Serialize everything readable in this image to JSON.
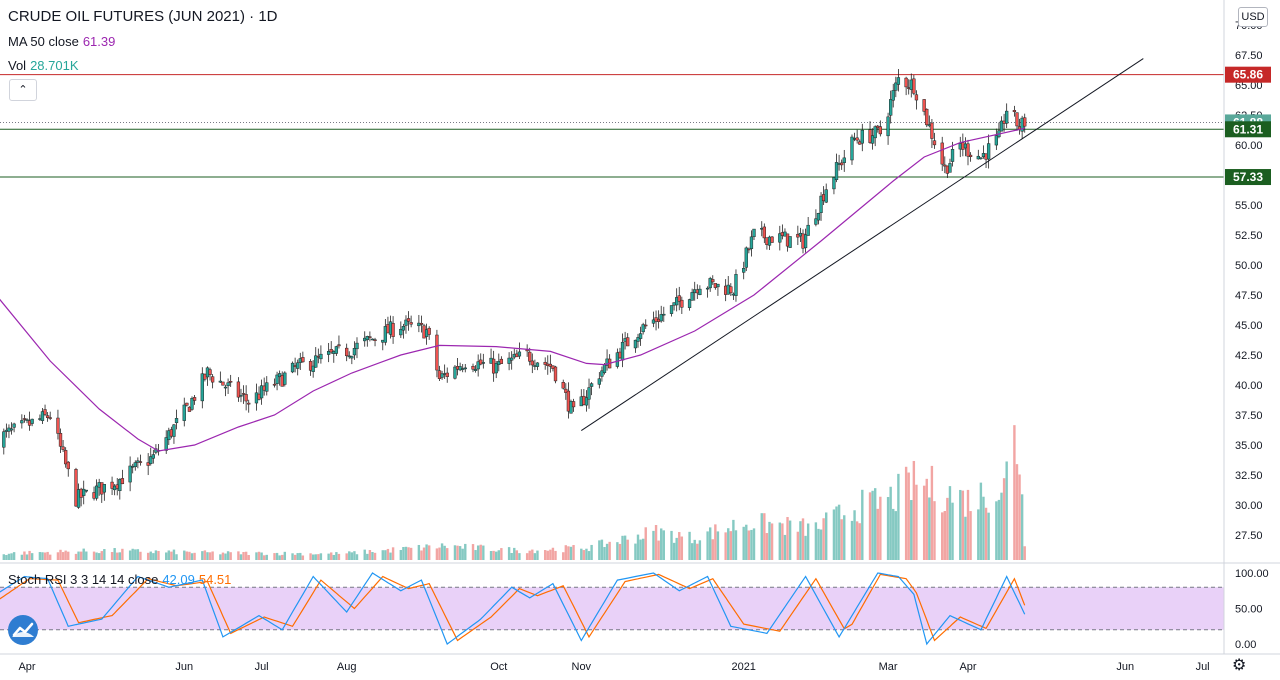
{
  "header": {
    "title": "CRUDE OIL FUTURES (JUN 2021) · 1D",
    "ma_label": "MA 50 close",
    "ma_value": "61.39",
    "vol_label": "Vol",
    "vol_value": "28.701K",
    "stoch_label": "Stoch RSI 3 3 14 14 close",
    "stoch_k": "42.09",
    "stoch_d": "54.51"
  },
  "controls": {
    "currency": "USD",
    "collapse": "⌃",
    "settings": "⚙"
  },
  "colors": {
    "up": "#26a69a",
    "down": "#ef5350",
    "ma": "#9c27b0",
    "vol_up": "#85c9c2",
    "vol_down": "#f2a5a3",
    "stoch_k": "#2196f3",
    "stoch_d": "#ff6d00",
    "stoch_band": "#e5c9f7",
    "resistance": "#c62828",
    "support": "#1b5e20",
    "trend": "#131722"
  },
  "chart_data": {
    "type": "candlestick",
    "title": "CRUDE OIL FUTURES (JUN 2021) · 1D",
    "y_ticks": [
      "27.50",
      "30.00",
      "32.50",
      "35.00",
      "37.50",
      "40.00",
      "42.50",
      "45.00",
      "47.50",
      "50.00",
      "52.50",
      "55.00",
      "57.50",
      "60.00",
      "62.50",
      "65.00",
      "67.50",
      "70.00"
    ],
    "ylim": [
      25.9,
      72.7
    ],
    "x_ticks": [
      {
        "label": "Apr",
        "date": "2020-04-01"
      },
      {
        "label": "Jun",
        "date": "2020-06-01"
      },
      {
        "label": "Jul",
        "date": "2020-07-01"
      },
      {
        "label": "Aug",
        "date": "2020-08-03"
      },
      {
        "label": "Oct",
        "date": "2020-10-01"
      },
      {
        "label": "Nov",
        "date": "2020-11-02"
      },
      {
        "label": "2021",
        "date": "2021-01-04"
      },
      {
        "label": "Mar",
        "date": "2021-03-01"
      },
      {
        "label": "Apr",
        "date": "2021-04-01"
      },
      {
        "label": "Jun",
        "date": "2021-06-01"
      },
      {
        "label": "Jul",
        "date": "2021-07-01"
      }
    ],
    "price_anchors": [
      [
        "2020-03-20",
        35.5
      ],
      [
        "2020-04-10",
        37.5
      ],
      [
        "2020-04-20",
        30.5
      ],
      [
        "2020-05-06",
        32
      ],
      [
        "2020-05-20",
        34
      ],
      [
        "2020-06-02",
        38
      ],
      [
        "2020-06-10",
        41
      ],
      [
        "2020-06-26",
        38.6
      ],
      [
        "2020-07-15",
        41.5
      ],
      [
        "2020-08-05",
        43
      ],
      [
        "2020-08-24",
        45
      ],
      [
        "2020-09-03",
        44.5
      ],
      [
        "2020-09-08",
        40.5
      ],
      [
        "2020-09-18",
        42
      ],
      [
        "2020-09-30",
        41.5
      ],
      [
        "2020-10-12",
        42.5
      ],
      [
        "2020-10-22",
        41.5
      ],
      [
        "2020-10-30",
        37.5
      ],
      [
        "2020-11-09",
        41
      ],
      [
        "2020-11-24",
        44.5
      ],
      [
        "2020-12-08",
        46.5
      ],
      [
        "2020-12-18",
        48.5
      ],
      [
        "2020-12-31",
        48
      ],
      [
        "2021-01-08",
        52.5
      ],
      [
        "2021-01-27",
        52
      ],
      [
        "2021-02-05",
        56.5
      ],
      [
        "2021-02-16",
        60.5
      ],
      [
        "2021-02-26",
        61
      ],
      [
        "2021-03-05",
        65.5
      ],
      [
        "2021-03-11",
        65
      ],
      [
        "2021-03-23",
        58
      ],
      [
        "2021-03-29",
        60
      ],
      [
        "2021-04-06",
        59
      ],
      [
        "2021-04-13",
        60.5
      ],
      [
        "2021-04-16",
        63
      ],
      [
        "2021-04-21",
        61.5
      ],
      [
        "2021-04-23",
        61.9
      ]
    ],
    "ma50": {
      "name": "MA 50 close",
      "points": [
        [
          "2020-03-20",
          47.5
        ],
        [
          "2020-04-10",
          42
        ],
        [
          "2020-04-29",
          38
        ],
        [
          "2020-05-14",
          35.5
        ],
        [
          "2020-05-22",
          34.5
        ],
        [
          "2020-06-05",
          35
        ],
        [
          "2020-06-22",
          36.5
        ],
        [
          "2020-07-06",
          37.5
        ],
        [
          "2020-07-21",
          39.5
        ],
        [
          "2020-08-05",
          41
        ],
        [
          "2020-08-24",
          42.5
        ],
        [
          "2020-09-08",
          43.3
        ],
        [
          "2020-09-30",
          43.2
        ],
        [
          "2020-10-21",
          42.8
        ],
        [
          "2020-11-04",
          41.8
        ],
        [
          "2020-11-11",
          41.7
        ],
        [
          "2020-11-25",
          42.5
        ],
        [
          "2020-12-16",
          44.5
        ],
        [
          "2021-01-08",
          47.5
        ],
        [
          "2021-02-03",
          52
        ],
        [
          "2021-02-17",
          54.5
        ],
        [
          "2021-03-03",
          57
        ],
        [
          "2021-03-15",
          59
        ],
        [
          "2021-03-29",
          60.2
        ],
        [
          "2021-04-23",
          61.39
        ]
      ]
    },
    "resistance_line": {
      "value": 65.86,
      "label": "65.86"
    },
    "support_lines": [
      {
        "value": 61.31,
        "label": "61.31"
      },
      {
        "value": 57.33,
        "label": "57.33"
      }
    ],
    "last_price": {
      "value": 61.88,
      "label": "61.88"
    },
    "trendline": {
      "from": [
        "2020-11-02",
        36.2
      ],
      "to": [
        "2021-06-08",
        67.2
      ]
    },
    "volume": {
      "name": "Vol",
      "last": "28.701K",
      "points": [
        [
          "2020-03-20",
          0.4
        ],
        [
          "2020-05-01",
          0.6
        ],
        [
          "2020-06-15",
          0.45
        ],
        [
          "2020-08-01",
          0.4
        ],
        [
          "2020-09-10",
          0.9
        ],
        [
          "2020-10-10",
          0.6
        ],
        [
          "2020-11-05",
          0.8
        ],
        [
          "2020-12-01",
          1.8
        ],
        [
          "2020-12-15",
          1.4
        ],
        [
          "2021-01-05",
          2.4
        ],
        [
          "2021-02-01",
          2.0
        ],
        [
          "2021-02-15",
          3.3
        ],
        [
          "2021-03-01",
          3.8
        ],
        [
          "2021-03-12",
          5.0
        ],
        [
          "2021-03-20",
          4.5
        ],
        [
          "2021-04-01",
          3.8
        ],
        [
          "2021-04-15",
          4.7
        ],
        [
          "2021-04-19",
          8.0
        ],
        [
          "2021-04-21",
          6.4
        ],
        [
          "2021-04-22",
          5.0
        ],
        [
          "2021-04-23",
          0.8
        ]
      ]
    },
    "stoch_rsi": {
      "name": "Stoch RSI 3 3 14 14 close",
      "k_last": 42.09,
      "d_last": 54.51,
      "y_ticks": [
        "100.00",
        "50.00",
        "0.00"
      ],
      "bands": [
        20,
        80
      ],
      "k_anchors": [
        [
          "2020-03-20",
          70
        ],
        [
          "2020-03-31",
          95
        ],
        [
          "2020-04-09",
          92
        ],
        [
          "2020-04-17",
          25
        ],
        [
          "2020-04-30",
          35
        ],
        [
          "2020-05-14",
          95
        ],
        [
          "2020-05-26",
          80
        ],
        [
          "2020-06-08",
          90
        ],
        [
          "2020-06-16",
          10
        ],
        [
          "2020-06-30",
          40
        ],
        [
          "2020-07-09",
          20
        ],
        [
          "2020-07-21",
          95
        ],
        [
          "2020-08-03",
          45
        ],
        [
          "2020-08-13",
          100
        ],
        [
          "2020-08-24",
          75
        ],
        [
          "2020-09-01",
          90
        ],
        [
          "2020-09-11",
          0
        ],
        [
          "2020-09-24",
          35
        ],
        [
          "2020-10-06",
          80
        ],
        [
          "2020-10-13",
          65
        ],
        [
          "2020-10-22",
          85
        ],
        [
          "2020-11-02",
          5
        ],
        [
          "2020-11-16",
          90
        ],
        [
          "2020-11-30",
          100
        ],
        [
          "2020-12-10",
          75
        ],
        [
          "2020-12-21",
          95
        ],
        [
          "2020-12-30",
          25
        ],
        [
          "2021-01-13",
          15
        ],
        [
          "2021-01-28",
          95
        ],
        [
          "2021-02-10",
          10
        ],
        [
          "2021-02-25",
          100
        ],
        [
          "2021-03-05",
          95
        ],
        [
          "2021-03-11",
          70
        ],
        [
          "2021-03-16",
          0
        ],
        [
          "2021-03-25",
          40
        ],
        [
          "2021-04-06",
          20
        ],
        [
          "2021-04-16",
          95
        ],
        [
          "2021-04-23",
          42
        ]
      ],
      "d_anchors": [
        [
          "2020-03-20",
          60
        ],
        [
          "2020-04-02",
          92
        ],
        [
          "2020-04-13",
          90
        ],
        [
          "2020-04-21",
          30
        ],
        [
          "2020-05-04",
          40
        ],
        [
          "2020-05-18",
          92
        ],
        [
          "2020-05-29",
          82
        ],
        [
          "2020-06-10",
          88
        ],
        [
          "2020-06-19",
          15
        ],
        [
          "2020-07-02",
          38
        ],
        [
          "2020-07-13",
          25
        ],
        [
          "2020-07-24",
          90
        ],
        [
          "2020-08-06",
          50
        ],
        [
          "2020-08-17",
          95
        ],
        [
          "2020-08-27",
          78
        ],
        [
          "2020-09-04",
          85
        ],
        [
          "2020-09-15",
          5
        ],
        [
          "2020-09-28",
          38
        ],
        [
          "2020-10-09",
          78
        ],
        [
          "2020-10-16",
          68
        ],
        [
          "2020-10-26",
          82
        ],
        [
          "2020-11-05",
          10
        ],
        [
          "2020-11-19",
          88
        ],
        [
          "2020-12-02",
          98
        ],
        [
          "2020-12-14",
          78
        ],
        [
          "2020-12-23",
          92
        ],
        [
          "2021-01-04",
          28
        ],
        [
          "2021-01-18",
          18
        ],
        [
          "2021-02-01",
          92
        ],
        [
          "2021-02-13",
          15
        ],
        [
          "2021-02-26",
          98
        ],
        [
          "2021-03-08",
          92
        ],
        [
          "2021-03-12",
          72
        ],
        [
          "2021-03-19",
          5
        ],
        [
          "2021-03-29",
          38
        ],
        [
          "2021-04-08",
          22
        ],
        [
          "2021-04-19",
          92
        ],
        [
          "2021-04-23",
          54.5
        ]
      ]
    },
    "grid": false
  }
}
